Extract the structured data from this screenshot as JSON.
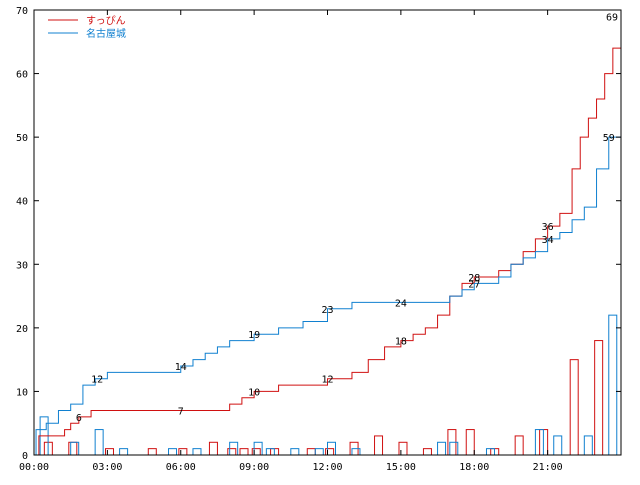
{
  "chart_data": {
    "type": "line",
    "title": "",
    "xlabel": "",
    "ylabel": "",
    "xlim": [
      0,
      1440
    ],
    "ylim": [
      0,
      70
    ],
    "x_ticks": [
      {
        "value": 0,
        "label": "00:00"
      },
      {
        "value": 180,
        "label": "03:00"
      },
      {
        "value": 360,
        "label": "06:00"
      },
      {
        "value": 540,
        "label": "09:00"
      },
      {
        "value": 720,
        "label": "12:00"
      },
      {
        "value": 900,
        "label": "15:00"
      },
      {
        "value": 1080,
        "label": "18:00"
      },
      {
        "value": 1260,
        "label": "21:00"
      }
    ],
    "y_ticks": [
      0,
      10,
      20,
      30,
      40,
      50,
      60,
      70
    ],
    "legend": "top-left",
    "grid": false,
    "series": [
      {
        "name": "すっぴん",
        "color": "#d01010",
        "cumulative": [
          [
            0,
            0
          ],
          [
            12,
            3
          ],
          [
            35,
            3
          ],
          [
            40,
            3
          ],
          [
            60,
            3
          ],
          [
            75,
            4
          ],
          [
            90,
            5
          ],
          [
            110,
            6
          ],
          [
            140,
            7
          ],
          [
            180,
            7
          ],
          [
            300,
            7
          ],
          [
            360,
            7
          ],
          [
            450,
            7
          ],
          [
            480,
            8
          ],
          [
            510,
            9
          ],
          [
            540,
            10
          ],
          [
            600,
            11
          ],
          [
            660,
            11
          ],
          [
            720,
            12
          ],
          [
            750,
            12
          ],
          [
            780,
            13
          ],
          [
            820,
            15
          ],
          [
            860,
            17
          ],
          [
            900,
            18
          ],
          [
            930,
            19
          ],
          [
            960,
            20
          ],
          [
            990,
            22
          ],
          [
            1020,
            25
          ],
          [
            1050,
            27
          ],
          [
            1080,
            28
          ],
          [
            1110,
            28
          ],
          [
            1140,
            29
          ],
          [
            1170,
            30
          ],
          [
            1200,
            32
          ],
          [
            1230,
            34
          ],
          [
            1260,
            36
          ],
          [
            1290,
            38
          ],
          [
            1320,
            45
          ],
          [
            1340,
            50
          ],
          [
            1360,
            53
          ],
          [
            1380,
            56
          ],
          [
            1400,
            60
          ],
          [
            1420,
            64
          ],
          [
            1440,
            69
          ]
        ],
        "bars": [
          [
            45,
            2
          ],
          [
            105,
            2
          ],
          [
            195,
            1
          ],
          [
            300,
            1
          ],
          [
            375,
            1
          ],
          [
            450,
            2
          ],
          [
            495,
            1
          ],
          [
            525,
            1
          ],
          [
            555,
            1
          ],
          [
            600,
            1
          ],
          [
            690,
            1
          ],
          [
            735,
            1
          ],
          [
            795,
            2
          ],
          [
            855,
            3
          ],
          [
            915,
            2
          ],
          [
            975,
            1
          ],
          [
            1035,
            4
          ],
          [
            1080,
            4
          ],
          [
            1140,
            1
          ],
          [
            1200,
            3
          ],
          [
            1260,
            4
          ],
          [
            1335,
            15
          ],
          [
            1395,
            18
          ]
        ],
        "labels": [
          [
            110,
            "6"
          ],
          [
            360,
            "7"
          ],
          [
            540,
            "10"
          ],
          [
            720,
            "12"
          ],
          [
            900,
            "18"
          ],
          [
            1080,
            "28"
          ],
          [
            1260,
            "36"
          ],
          [
            1440,
            "69"
          ]
        ]
      },
      {
        "name": "名古屋城",
        "color": "#1080d0",
        "cumulative": [
          [
            0,
            0
          ],
          [
            5,
            4
          ],
          [
            30,
            5
          ],
          [
            60,
            7
          ],
          [
            90,
            8
          ],
          [
            120,
            11
          ],
          [
            150,
            12
          ],
          [
            180,
            13
          ],
          [
            240,
            13
          ],
          [
            300,
            13
          ],
          [
            360,
            14
          ],
          [
            390,
            15
          ],
          [
            420,
            16
          ],
          [
            450,
            17
          ],
          [
            480,
            18
          ],
          [
            540,
            19
          ],
          [
            600,
            20
          ],
          [
            660,
            21
          ],
          [
            720,
            23
          ],
          [
            780,
            24
          ],
          [
            840,
            24
          ],
          [
            900,
            24
          ],
          [
            960,
            24
          ],
          [
            1020,
            25
          ],
          [
            1050,
            26
          ],
          [
            1080,
            27
          ],
          [
            1110,
            27
          ],
          [
            1140,
            28
          ],
          [
            1170,
            30
          ],
          [
            1200,
            31
          ],
          [
            1230,
            32
          ],
          [
            1260,
            34
          ],
          [
            1290,
            35
          ],
          [
            1320,
            37
          ],
          [
            1350,
            39
          ],
          [
            1380,
            45
          ],
          [
            1410,
            50
          ],
          [
            1440,
            59
          ]
        ],
        "bars": [
          [
            15,
            6
          ],
          [
            90,
            2
          ],
          [
            150,
            4
          ],
          [
            210,
            1
          ],
          [
            330,
            1
          ],
          [
            390,
            1
          ],
          [
            480,
            2
          ],
          [
            540,
            2
          ],
          [
            570,
            1
          ],
          [
            630,
            1
          ],
          [
            690,
            1
          ],
          [
            720,
            2
          ],
          [
            780,
            1
          ],
          [
            990,
            2
          ],
          [
            1020,
            2
          ],
          [
            1110,
            1
          ],
          [
            1230,
            4
          ],
          [
            1275,
            3
          ],
          [
            1350,
            3
          ],
          [
            1410,
            22
          ]
        ],
        "labels": [
          [
            155,
            "12"
          ],
          [
            360,
            "14"
          ],
          [
            540,
            "19"
          ],
          [
            720,
            "23"
          ],
          [
            900,
            "24"
          ],
          [
            1080,
            "27"
          ],
          [
            1260,
            "34"
          ],
          [
            1410,
            "59"
          ]
        ]
      }
    ]
  }
}
